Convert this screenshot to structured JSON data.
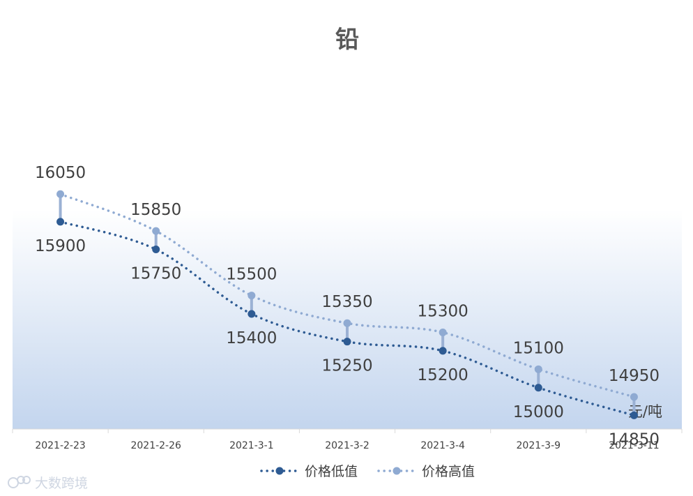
{
  "chart_data": {
    "type": "line",
    "title": "铅",
    "unit_label": "元/吨",
    "categories": [
      "2021-2-23",
      "2021-2-26",
      "2021-3-1",
      "2021-3-2",
      "2021-3-4",
      "2021-3-9",
      "2021-3-11"
    ],
    "series": [
      {
        "name": "价格低值",
        "values": [
          15900,
          15750,
          15400,
          15250,
          15200,
          15000,
          14850
        ],
        "color": "#2e5b93",
        "label_position": "below"
      },
      {
        "name": "价格高值",
        "values": [
          16050,
          15850,
          15500,
          15350,
          15300,
          15100,
          14950
        ],
        "color": "#8faad2",
        "label_position": "above"
      }
    ],
    "ylim": [
      14000,
      16500
    ],
    "grid": false,
    "legend_position": "bottom",
    "high_low_lines": true,
    "colors": {
      "plot_gradient_bottom": "#c3d5ee",
      "connector": "#9bb1d4"
    }
  },
  "watermark": "大数跨境"
}
